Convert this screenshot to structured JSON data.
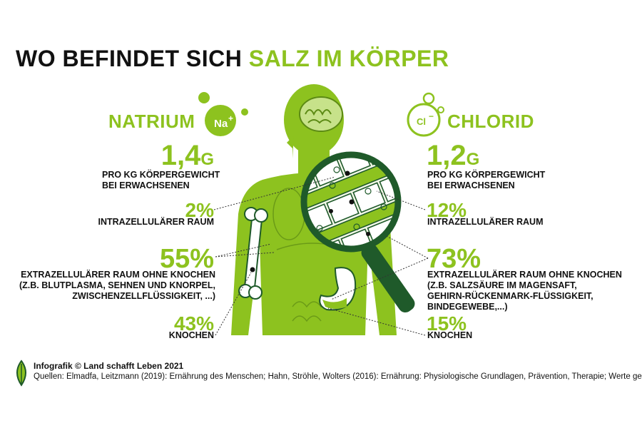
{
  "title": {
    "part1": "WO BEFINDET SICH ",
    "part2": "SALZ IM KÖRPER"
  },
  "sodium": {
    "name": "NATRIUM",
    "symbol": "Na",
    "charge": "+",
    "amount": "1,4",
    "unit": "G",
    "per_line1": "PRO KG KÖRPERGEWICHT",
    "per_line2": "BEI ERWACHSENEN",
    "intra_pct": "2%",
    "intra_label": "INTRAZELLULÄRER RAUM",
    "extra_pct": "55%",
    "extra_label1": "EXTRAZELLULÄRER RAUM OHNE KNOCHEN",
    "extra_label2": "(Z.B. BLUTPLASMA, SEHNEN UND KNORPEL,",
    "extra_label3": "ZWISCHENZELLFLÜSSIGKEIT, ...)",
    "bone_pct": "43%",
    "bone_label": "KNOCHEN"
  },
  "chloride": {
    "name": "CHLORID",
    "symbol": "Cl",
    "charge": "−",
    "amount": "1,2",
    "unit": "G",
    "per_line1": "PRO KG KÖRPERGEWICHT",
    "per_line2": "BEI ERWACHSENEN",
    "intra_pct": "12%",
    "intra_label": "INTRAZELLULÄRER RAUM",
    "extra_pct": "73%",
    "extra_label1": "EXTRAZELLULÄRER RAUM OHNE KNOCHEN",
    "extra_label2": "(Z.B. SALZSÄURE IM MAGENSAFT,",
    "extra_label3": "GEHIRN-RÜCKENMARK-FLÜSSIGKEIT,",
    "extra_label4": "BINDEGEWEBE,...)",
    "bone_pct": "15%",
    "bone_label": "KNOCHEN"
  },
  "footer": {
    "credit": "Infografik © Land schafft Leben 2021",
    "sources": "Quellen: Elmadfa, Leitzmann (2019): Ernährung des Menschen; Hahn, Ströhle, Wolters (2016): Ernährung: Physiologische Grundlagen, Prävention, Therapie; Werte gerundet"
  },
  "colors": {
    "accent": "#8dc21f",
    "dark_green": "#1f5a2a",
    "text": "#111111"
  },
  "icons": [
    "body-illustration",
    "magnifier-icon",
    "bone-icon",
    "stomach-icon",
    "brain-icon",
    "leaf-logo-icon"
  ]
}
